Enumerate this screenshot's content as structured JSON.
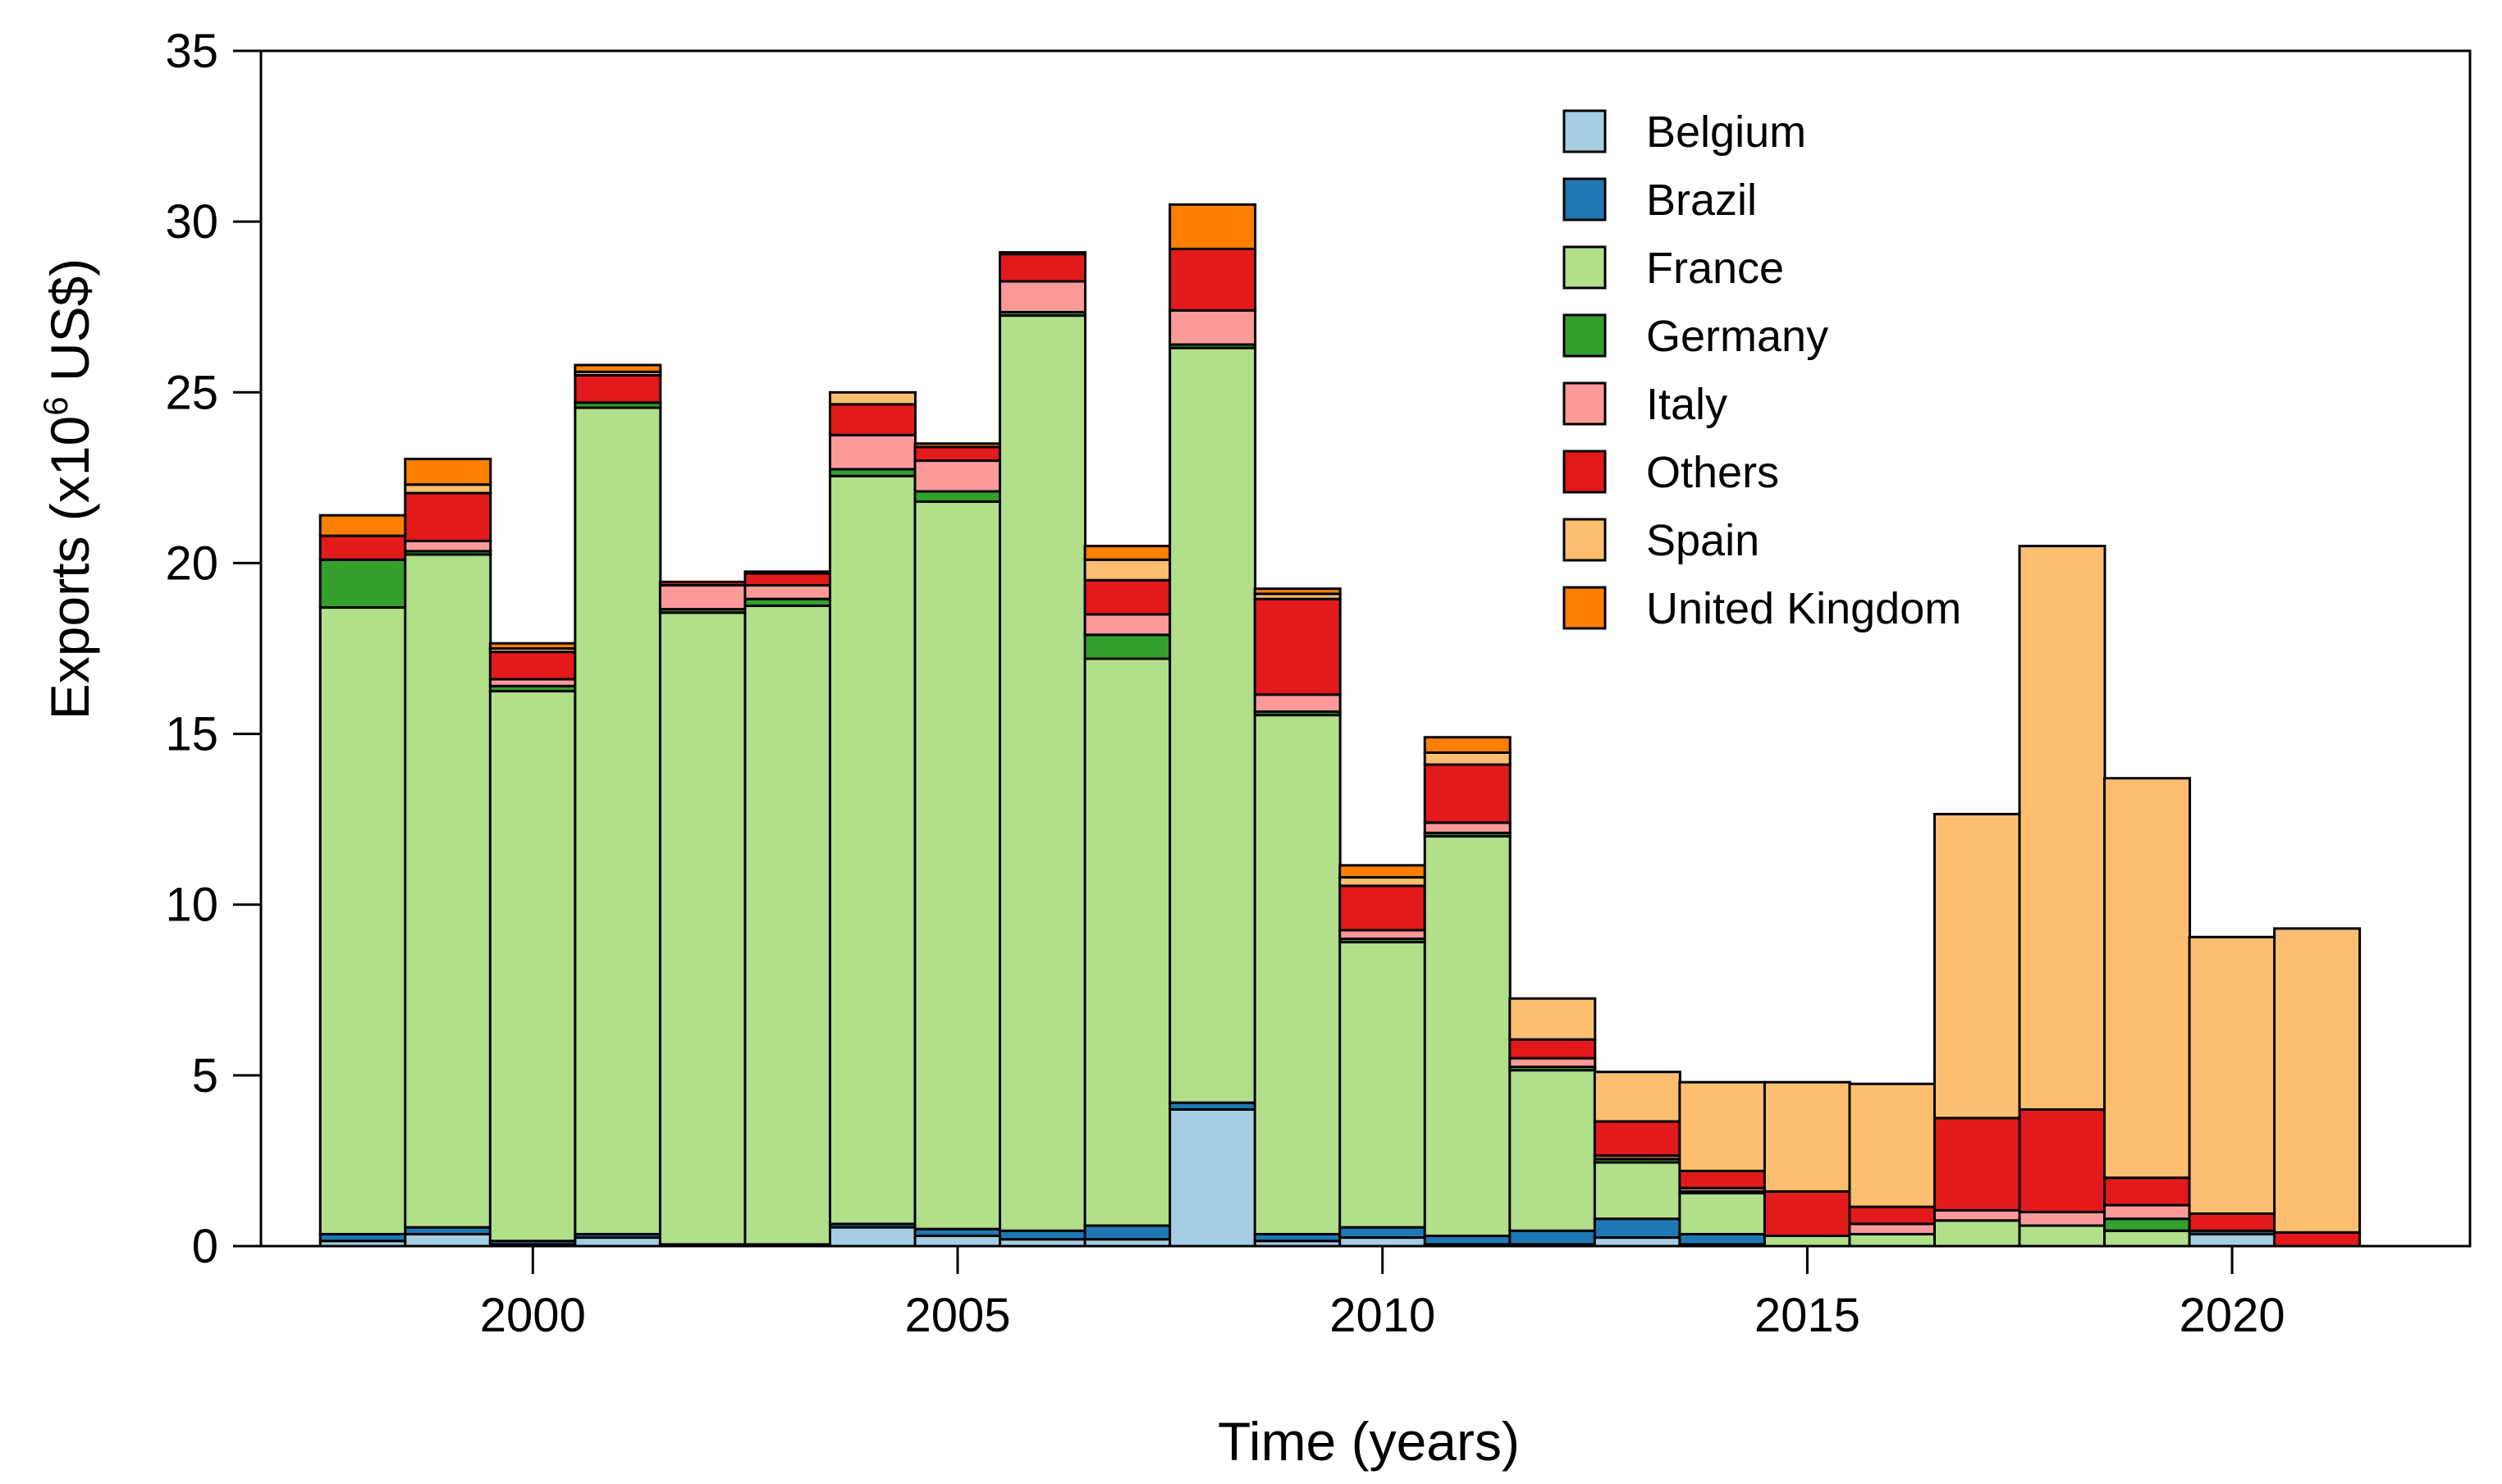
{
  "chart_data": {
    "type": "bar",
    "stacked": true,
    "title": "",
    "xlabel": "Time (years)",
    "ylabel_main": "Exports (x10",
    "ylabel_sup": "6",
    "ylabel_end": " US$)",
    "ylim": [
      0,
      35
    ],
    "yticks": [
      0,
      5,
      10,
      15,
      20,
      25,
      30,
      35
    ],
    "xlim": [
      1996.8,
      2022.8
    ],
    "xticks": [
      2000,
      2005,
      2010,
      2015,
      2020
    ],
    "legend_position": "top-right",
    "categories": [
      1998,
      1999,
      2000,
      2001,
      2002,
      2003,
      2004,
      2005,
      2006,
      2007,
      2008,
      2009,
      2010,
      2011,
      2012,
      2013,
      2014,
      2015,
      2016,
      2017,
      2018,
      2019,
      2020,
      2021
    ],
    "series": [
      {
        "name": "Belgium",
        "color": "#a6cee3",
        "values": [
          0.15,
          0.35,
          0.05,
          0.25,
          0.0,
          0.0,
          0.55,
          0.3,
          0.2,
          0.2,
          4.0,
          0.15,
          0.25,
          0.05,
          0.05,
          0.25,
          0.05,
          0.0,
          0.0,
          0.0,
          0.0,
          0.0,
          0.35,
          0.0
        ]
      },
      {
        "name": "Brazil",
        "color": "#1f78b4",
        "values": [
          0.2,
          0.2,
          0.1,
          0.1,
          0.05,
          0.05,
          0.1,
          0.2,
          0.25,
          0.4,
          0.2,
          0.2,
          0.3,
          0.25,
          0.4,
          0.55,
          0.3,
          0.0,
          0.0,
          0.0,
          0.0,
          0.0,
          0.1,
          0.0
        ]
      },
      {
        "name": "France",
        "color": "#b2df8a",
        "values": [
          18.35,
          19.7,
          16.1,
          24.2,
          18.5,
          18.7,
          21.9,
          21.3,
          26.8,
          16.6,
          22.1,
          15.2,
          8.35,
          11.7,
          4.7,
          1.65,
          1.2,
          0.3,
          0.35,
          0.75,
          0.6,
          0.45,
          0.0,
          0.0
        ]
      },
      {
        "name": "Germany",
        "color": "#33a02c",
        "values": [
          1.4,
          0.1,
          0.15,
          0.15,
          0.1,
          0.2,
          0.2,
          0.3,
          0.1,
          0.7,
          0.1,
          0.1,
          0.1,
          0.1,
          0.1,
          0.1,
          0.05,
          0.0,
          0.0,
          0.0,
          0.0,
          0.35,
          0.0,
          0.0
        ]
      },
      {
        "name": "Italy",
        "color": "#fb9a99",
        "values": [
          0.0,
          0.3,
          0.2,
          0.0,
          0.7,
          0.4,
          1.0,
          0.9,
          0.9,
          0.6,
          1.0,
          0.5,
          0.25,
          0.3,
          0.25,
          0.1,
          0.1,
          0.0,
          0.3,
          0.3,
          0.4,
          0.4,
          0.0,
          0.0
        ]
      },
      {
        "name": "Others",
        "color": "#e31a1c",
        "values": [
          0.7,
          1.4,
          0.8,
          0.8,
          0.1,
          0.35,
          0.9,
          0.4,
          0.8,
          1.0,
          1.8,
          2.8,
          1.3,
          1.7,
          0.55,
          1.0,
          0.5,
          1.3,
          0.5,
          2.7,
          3.0,
          0.8,
          0.5,
          0.4
        ]
      },
      {
        "name": "Spain",
        "color": "#fdbf6f",
        "values": [
          0.0,
          0.25,
          0.1,
          0.1,
          0.0,
          0.0,
          0.35,
          0.0,
          0.0,
          0.6,
          0.0,
          0.15,
          0.25,
          0.35,
          1.2,
          1.45,
          2.6,
          3.2,
          3.6,
          8.9,
          16.5,
          11.7,
          8.1,
          8.9
        ]
      },
      {
        "name": "United Kingdom",
        "color": "#ff7f00",
        "values": [
          0.6,
          0.75,
          0.15,
          0.2,
          0.0,
          0.05,
          0.0,
          0.1,
          0.05,
          0.4,
          1.3,
          0.15,
          0.35,
          0.45,
          0.0,
          0.0,
          0.0,
          0.0,
          0.0,
          0.0,
          0.0,
          0.0,
          0.0,
          0.0
        ]
      }
    ]
  }
}
